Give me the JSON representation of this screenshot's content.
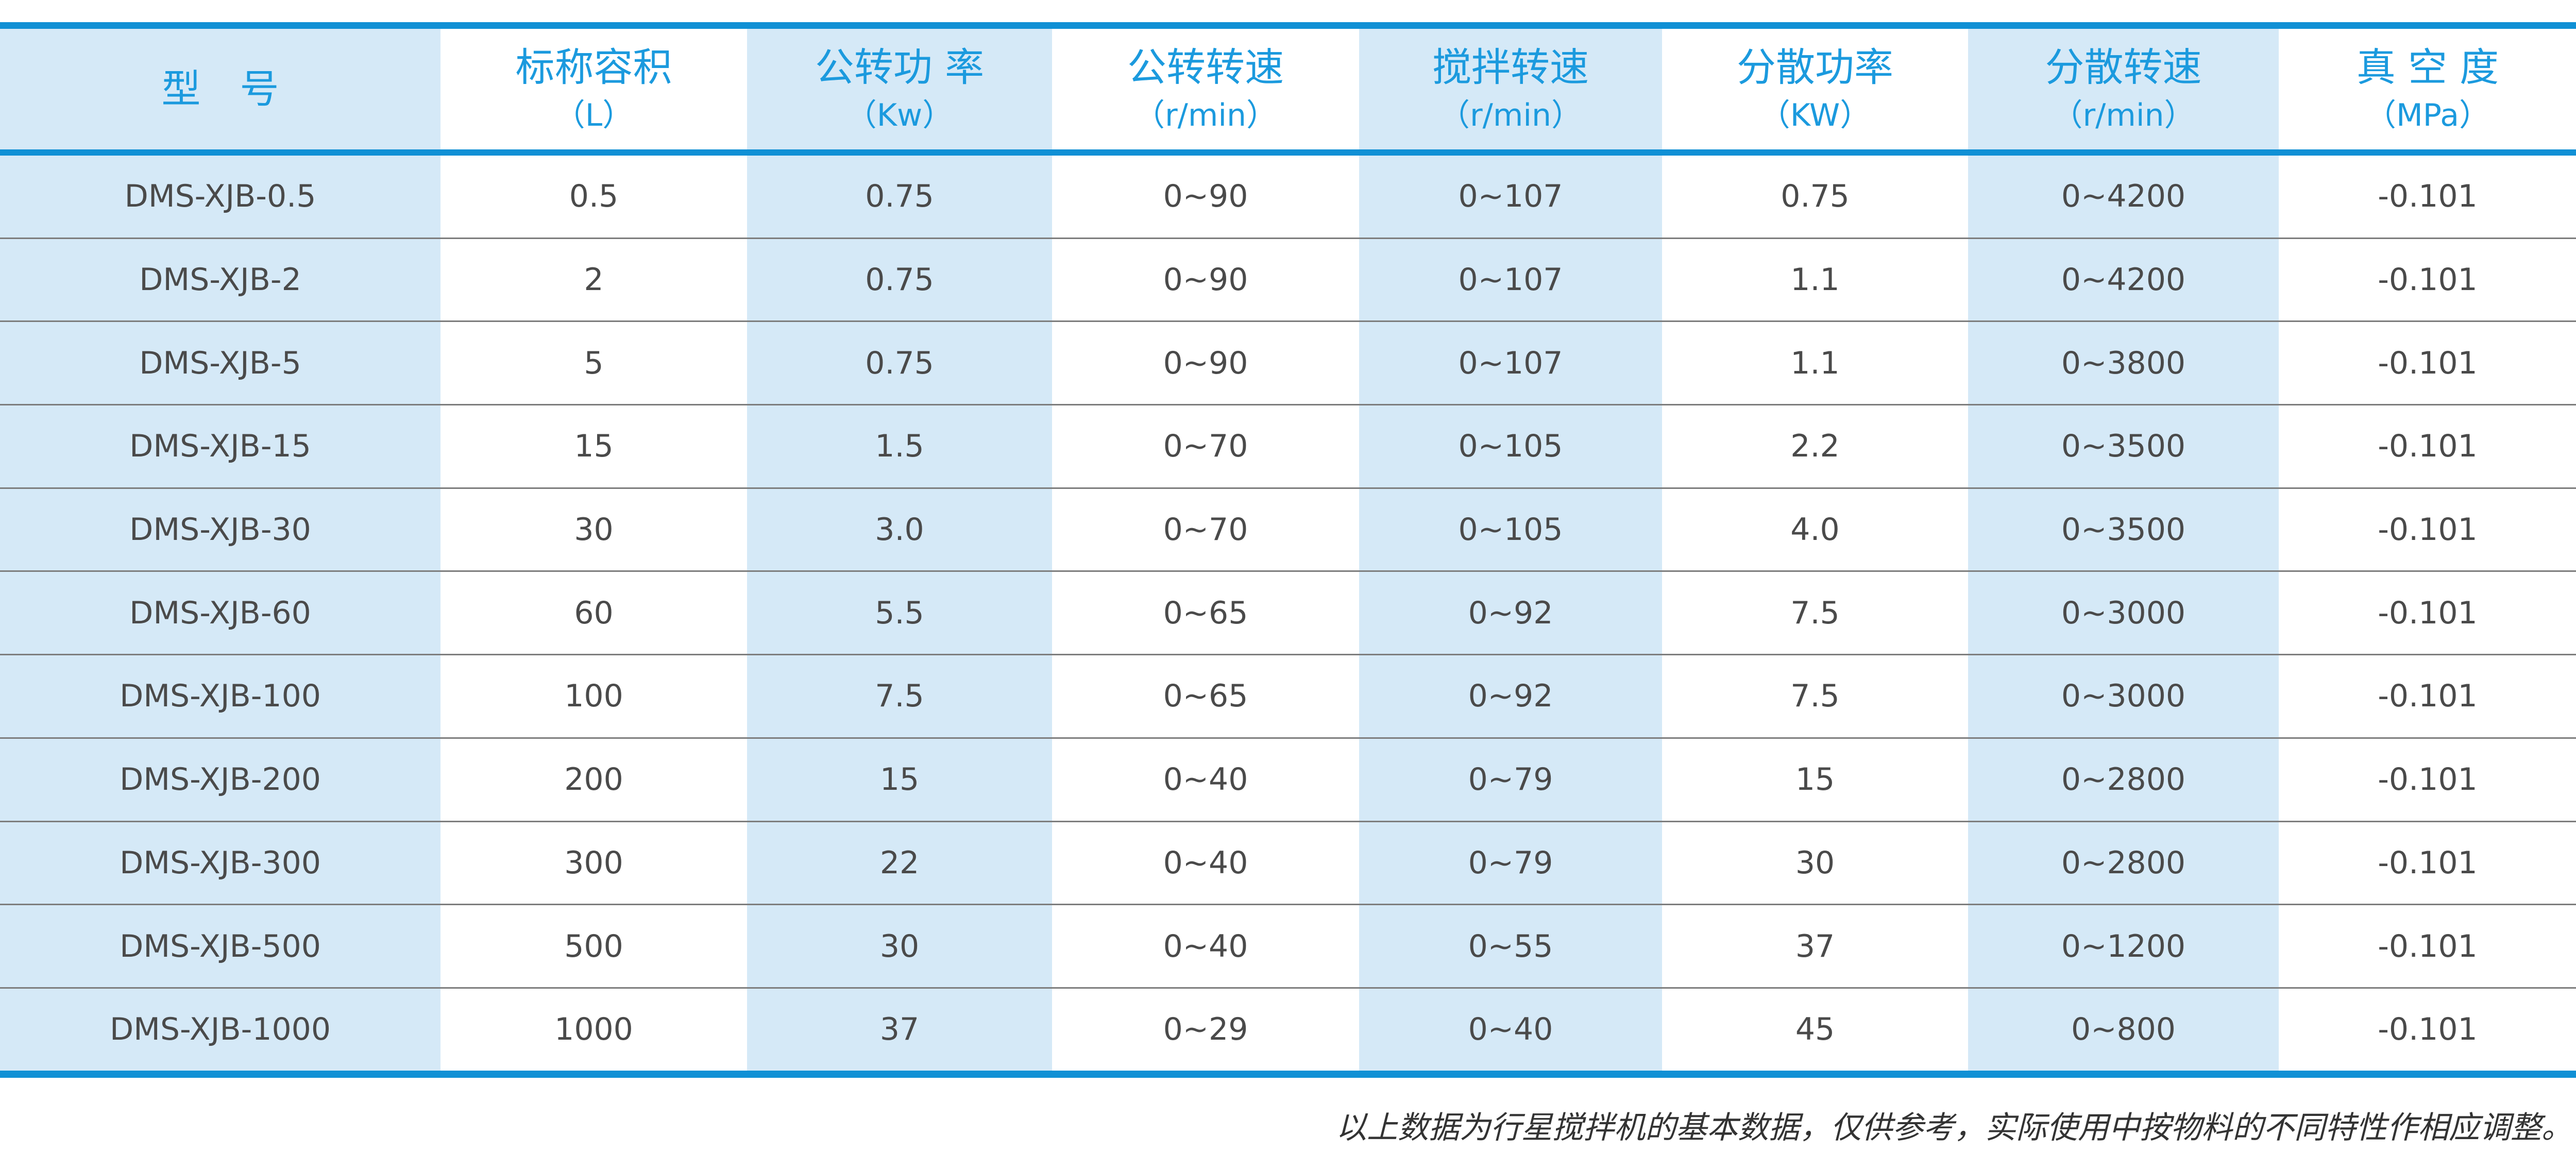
{
  "table": {
    "columns": [
      {
        "label": "型　号",
        "unit": "",
        "tinted": true
      },
      {
        "label": "标称容积",
        "unit": "（L）",
        "tinted": false
      },
      {
        "label": "公转功 率",
        "unit": "（Kw）",
        "tinted": true
      },
      {
        "label": "公转转速",
        "unit": "（r/min）",
        "tinted": false
      },
      {
        "label": "搅拌转速",
        "unit": "（r/min）",
        "tinted": true
      },
      {
        "label": "分散功率",
        "unit": "（KW）",
        "tinted": false
      },
      {
        "label": "分散转速",
        "unit": "（r/min）",
        "tinted": true
      },
      {
        "label": "真 空 度",
        "unit": "（MPa）",
        "tinted": false
      }
    ],
    "rows": [
      [
        "DMS-XJB-0.5",
        "0.5",
        "0.75",
        "0~90",
        "0~107",
        "0.75",
        "0~4200",
        "-0.101"
      ],
      [
        "DMS-XJB-2",
        "2",
        "0.75",
        "0~90",
        "0~107",
        "1.1",
        "0~4200",
        "-0.101"
      ],
      [
        "DMS-XJB-5",
        "5",
        "0.75",
        "0~90",
        "0~107",
        "1.1",
        "0~3800",
        "-0.101"
      ],
      [
        "DMS-XJB-15",
        "15",
        "1.5",
        "0~70",
        "0~105",
        "2.2",
        "0~3500",
        "-0.101"
      ],
      [
        "DMS-XJB-30",
        "30",
        "3.0",
        "0~70",
        "0~105",
        "4.0",
        "0~3500",
        "-0.101"
      ],
      [
        "DMS-XJB-60",
        "60",
        "5.5",
        "0~65",
        "0~92",
        "7.5",
        "0~3000",
        "-0.101"
      ],
      [
        "DMS-XJB-100",
        "100",
        "7.5",
        "0~65",
        "0~92",
        "7.5",
        "0~3000",
        "-0.101"
      ],
      [
        "DMS-XJB-200",
        "200",
        "15",
        "0~40",
        "0~79",
        "15",
        "0~2800",
        "-0.101"
      ],
      [
        "DMS-XJB-300",
        "300",
        "22",
        "0~40",
        "0~79",
        "30",
        "0~2800",
        "-0.101"
      ],
      [
        "DMS-XJB-500",
        "500",
        "30",
        "0~40",
        "0~55",
        "37",
        "0~1200",
        "-0.101"
      ],
      [
        "DMS-XJB-1000",
        "1000",
        "37",
        "0~29",
        "0~40",
        "45",
        "0~800",
        "-0.101"
      ]
    ]
  },
  "footnote": "以上数据为行星搅拌机的基本数据，仅供参考，实际使用中按物料的不同特性作相应调整。",
  "colors": {
    "accent_blue": "#1090d5",
    "header_text_blue": "#1b9ade",
    "stripe_light_blue": "#d5e9f7",
    "data_text": "#4a4a4a",
    "row_separator_gray": "#7d7d7d",
    "footnote_text": "#333333"
  }
}
